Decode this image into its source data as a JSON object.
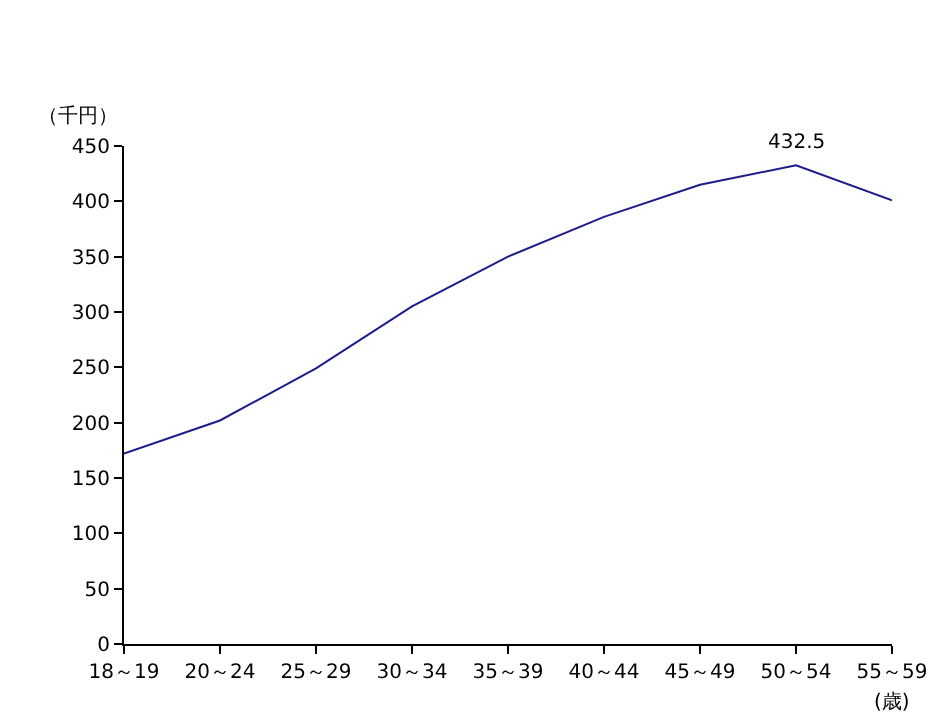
{
  "chart_data": {
    "type": "line",
    "ylabel": "（千円）",
    "xlabel": "(歳)",
    "categories": [
      "18～19",
      "20～24",
      "25～29",
      "30～34",
      "35～39",
      "40～44",
      "45～49",
      "50～54",
      "55～59"
    ],
    "series": [
      {
        "color": "#1c1c8c",
        "values": [
          172,
          202,
          249,
          305,
          350,
          386,
          415,
          432.5,
          401
        ]
      }
    ],
    "ylim": [
      0,
      450
    ],
    "yticks": [
      0,
      50,
      100,
      150,
      200,
      250,
      300,
      350,
      400,
      450
    ],
    "annotations": [
      {
        "text": "432.5",
        "x": "50～54",
        "y": 432.5
      }
    ],
    "grid": false,
    "legend": false,
    "marker": "none"
  }
}
